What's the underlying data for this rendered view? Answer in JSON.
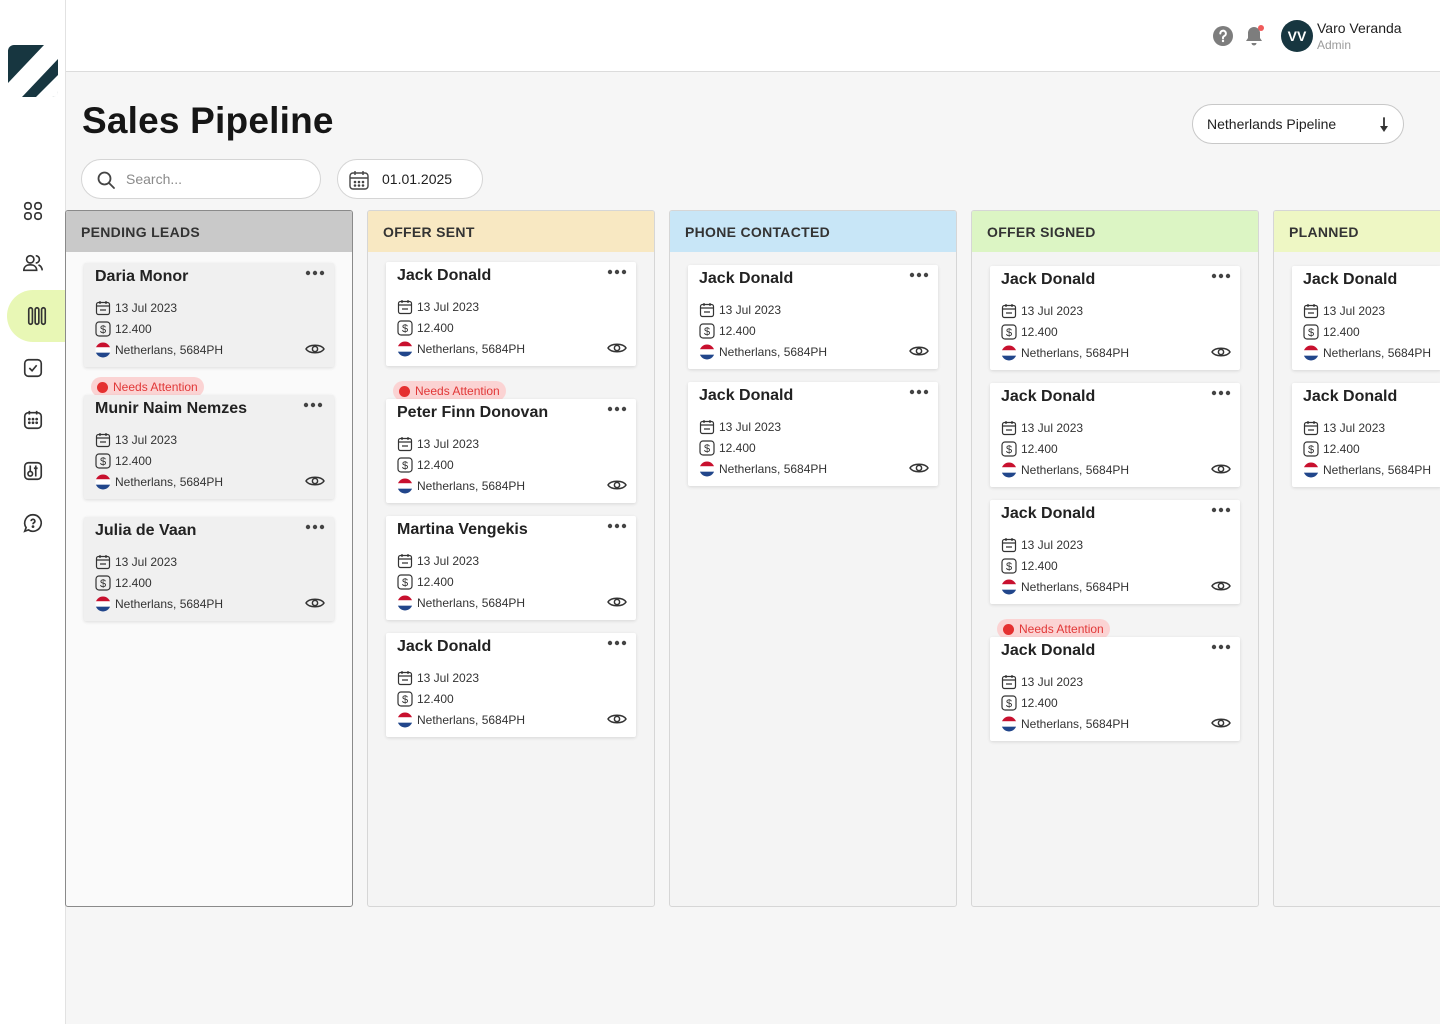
{
  "user": {
    "initials": "VV",
    "name": "Varo Veranda",
    "role": "Admin"
  },
  "page": {
    "title": "Sales Pipeline"
  },
  "pipeline_select": {
    "value": "Netherlands Pipeline"
  },
  "search": {
    "placeholder": "Search..."
  },
  "date_filter": {
    "value": "01.01.2025"
  },
  "columns": [
    {
      "title": "PENDING  LEADS",
      "color": "#c9c9c9",
      "cards": [
        {
          "name": "Daria Monor",
          "date": "13 Jul 2023",
          "amount": "12.400",
          "location": "Netherlans, 5684PH"
        },
        {
          "name": "Munir Naim Nemzes",
          "badge": "Needs Attention",
          "date": "13 Jul 2023",
          "amount": "12.400",
          "location": "Netherlans, 5684PH"
        },
        {
          "name": "Julia de Vaan",
          "date": "13 Jul 2023",
          "amount": "12.400",
          "location": "Netherlans, 5684PH"
        }
      ]
    },
    {
      "title": "OFFER SENT",
      "color": "#f8e8c2",
      "cards": [
        {
          "name": "Jack Donald",
          "date": "13 Jul 2023",
          "amount": "12.400",
          "location": "Netherlans, 5684PH"
        },
        {
          "name": "Peter Finn Donovan",
          "badge": "Needs Attention",
          "date": "13 Jul 2023",
          "amount": "12.400",
          "location": "Netherlans, 5684PH"
        },
        {
          "name": "Martina Vengekis",
          "date": "13 Jul 2023",
          "amount": "12.400",
          "location": "Netherlans, 5684PH"
        },
        {
          "name": "Jack Donald",
          "date": "13 Jul 2023",
          "amount": "12.400",
          "location": "Netherlans, 5684PH"
        }
      ]
    },
    {
      "title": "PHONE CONTACTED",
      "color": "#c8e6f7",
      "cards": [
        {
          "name": "Jack Donald",
          "date": "13 Jul 2023",
          "amount": "12.400",
          "location": "Netherlans, 5684PH"
        },
        {
          "name": "Jack Donald",
          "date": "13 Jul 2023",
          "amount": "12.400",
          "location": "Netherlans, 5684PH"
        }
      ]
    },
    {
      "title": "OFFER SIGNED",
      "color": "#dcf5c4",
      "cards": [
        {
          "name": "Jack Donald",
          "date": "13 Jul 2023",
          "amount": "12.400",
          "location": "Netherlans, 5684PH"
        },
        {
          "name": "Jack Donald",
          "date": "13 Jul 2023",
          "amount": "12.400",
          "location": "Netherlans, 5684PH"
        },
        {
          "name": "Jack Donald",
          "date": "13 Jul 2023",
          "amount": "12.400",
          "location": "Netherlans, 5684PH"
        },
        {
          "name": "Jack Donald",
          "badge": "Needs Attention",
          "date": "13 Jul 2023",
          "amount": "12.400",
          "location": "Netherlans, 5684PH"
        }
      ]
    },
    {
      "title": "PLANNED",
      "color": "#eef7c4",
      "cards": [
        {
          "name": "Jack Donald",
          "date": "13 Jul 2023",
          "amount": "12.400",
          "location": "Netherlans, 5684PH"
        },
        {
          "name": "Jack Donald",
          "date": "13 Jul 2023",
          "amount": "12.400",
          "location": "Netherlans, 5684PH"
        }
      ]
    }
  ],
  "nav": [
    {
      "icon": "dashboard-grid-icon"
    },
    {
      "icon": "contacts-icon"
    },
    {
      "icon": "pipeline-columns-icon",
      "active": true
    },
    {
      "icon": "tasks-checklist-icon"
    },
    {
      "icon": "calendar-icon"
    },
    {
      "icon": "documents-icon"
    },
    {
      "icon": "support-chat-icon"
    }
  ],
  "colors": {
    "brand_dark": "#173640",
    "accent_lime": "#e8f7b5",
    "attention_red": "#e53030"
  }
}
